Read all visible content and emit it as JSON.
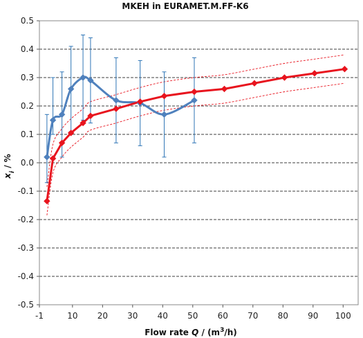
{
  "chart_data": {
    "type": "line",
    "title": "MKEH in EURAMET.M.FF-K6",
    "xlabel": {
      "prefix": "Flow rate ",
      "var": "Q",
      "mid": " / (m",
      "sup": "3",
      "suffix": "/h)"
    },
    "ylabel": {
      "var": "x",
      "sub": "i",
      "suffix": " / %"
    },
    "xlim": [
      -1,
      105
    ],
    "ylim": [
      -0.5,
      0.5
    ],
    "x_ticks": [
      -1,
      10,
      20,
      30,
      40,
      50,
      60,
      70,
      80,
      90,
      100
    ],
    "x_tick_labels": [
      "-1",
      "10",
      "20",
      "30",
      "40",
      "50",
      "60",
      "70",
      "80",
      "90",
      "100"
    ],
    "y_ticks": [
      -0.5,
      -0.4,
      -0.3,
      -0.2,
      -0.1,
      0.0,
      0.1,
      0.2,
      0.3,
      0.4,
      0.5
    ],
    "y_tick_labels": [
      "-0.5",
      "-0.4",
      "-0.3",
      "-0.2",
      "-0.1",
      "0.0",
      "0.1",
      "0.2",
      "0.3",
      "0.4",
      "0.5"
    ],
    "grid": "horizontal dashed",
    "series": [
      {
        "style": "blue-smooth-diamond",
        "color": "#4f81bd",
        "errorbar_color": "#2e75b6",
        "x": [
          1.5,
          3.5,
          6.5,
          9.5,
          13.5,
          16,
          24.5,
          32.5,
          40.5,
          50.5
        ],
        "y": [
          0.02,
          0.15,
          0.17,
          0.26,
          0.3,
          0.29,
          0.22,
          0.21,
          0.17,
          0.22
        ],
        "err_low": [
          -0.07,
          0.1,
          0.02,
          0.11,
          0.15,
          0.14,
          0.07,
          0.06,
          0.02,
          0.07
        ],
        "err_high": [
          0.17,
          0.3,
          0.32,
          0.41,
          0.45,
          0.44,
          0.37,
          0.36,
          0.32,
          0.37
        ]
      },
      {
        "style": "red-thick-diamond",
        "color": "#e8141e",
        "x": [
          1.5,
          3.5,
          6.5,
          9.5,
          13.5,
          16,
          24.5,
          32.5,
          40.5,
          50.5,
          60.5,
          70.5,
          80.5,
          90.5,
          100.5
        ],
        "y": [
          -0.135,
          0.015,
          0.07,
          0.105,
          0.14,
          0.165,
          0.19,
          0.215,
          0.235,
          0.25,
          0.26,
          0.28,
          0.3,
          0.315,
          0.33
        ],
        "band_low": [
          -0.185,
          -0.035,
          0.02,
          0.055,
          0.09,
          0.115,
          0.14,
          0.165,
          0.185,
          0.2,
          0.21,
          0.23,
          0.25,
          0.265,
          0.28
        ],
        "band_high": [
          -0.085,
          0.065,
          0.12,
          0.155,
          0.19,
          0.215,
          0.24,
          0.265,
          0.285,
          0.3,
          0.31,
          0.33,
          0.35,
          0.365,
          0.38
        ]
      }
    ]
  }
}
